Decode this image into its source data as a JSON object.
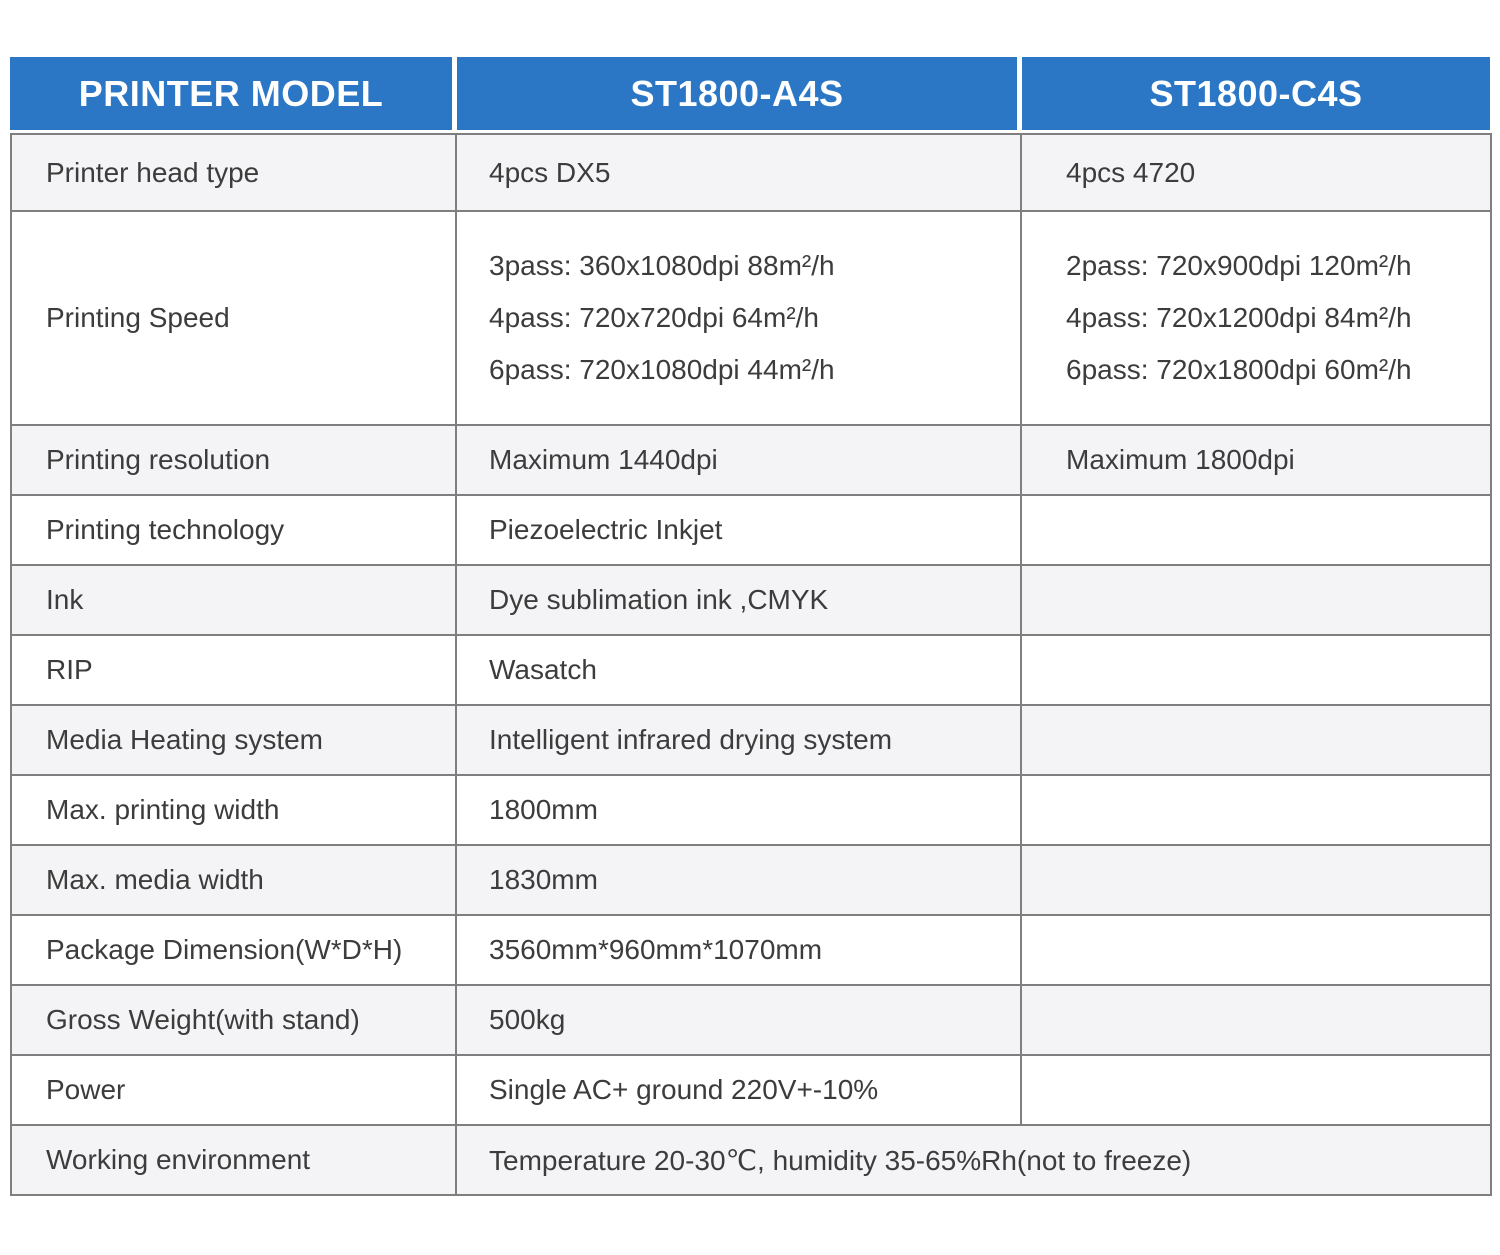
{
  "colors": {
    "header_bg": "#2B77C6",
    "header_text": "#FFFFFF",
    "row_bg": "#FFFFFF",
    "row_alt_bg": "#F4F4F6",
    "border": "#7F7F7F",
    "text": "#3C3C3C"
  },
  "table": {
    "header": {
      "col1": "PRINTER MODEL",
      "col2": "ST1800-A4S",
      "col3": "ST1800-C4S"
    },
    "rows": [
      {
        "label": "Printer head type",
        "a4s": "4pcs DX5",
        "c4s": "4pcs 4720"
      },
      {
        "label": "Printing Speed",
        "a4s_lines": [
          "3pass: 360x1080dpi 88m²/h",
          "4pass: 720x720dpi 64m²/h",
          "6pass: 720x1080dpi 44m²/h"
        ],
        "c4s_lines": [
          "2pass: 720x900dpi 120m²/h",
          "4pass: 720x1200dpi 84m²/h",
          "6pass: 720x1800dpi 60m²/h"
        ]
      },
      {
        "label": "Printing resolution",
        "a4s": "Maximum 1440dpi",
        "c4s": "Maximum 1800dpi"
      },
      {
        "label": "Printing technology",
        "a4s": "Piezoelectric Inkjet",
        "c4s": ""
      },
      {
        "label": "Ink",
        "a4s": "Dye sublimation ink ,CMYK",
        "c4s": ""
      },
      {
        "label": "RIP",
        "a4s": "Wasatch",
        "c4s": ""
      },
      {
        "label": "Media Heating system",
        "a4s": "Intelligent infrared drying system",
        "c4s": ""
      },
      {
        "label": "Max. printing width",
        "a4s": "1800mm",
        "c4s": ""
      },
      {
        "label": "Max. media width",
        "a4s": "1830mm",
        "c4s": ""
      },
      {
        "label": "Package Dimension(W*D*H)",
        "a4s": "3560mm*960mm*1070mm",
        "c4s": ""
      },
      {
        "label": "Gross Weight(with stand)",
        "a4s": "500kg",
        "c4s": ""
      },
      {
        "label": "Power",
        "a4s": "Single AC+ ground 220V+-10%",
        "c4s": ""
      },
      {
        "label": "Working environment",
        "merged": "Temperature 20-30℃, humidity 35-65%Rh(not to freeze)"
      }
    ]
  }
}
